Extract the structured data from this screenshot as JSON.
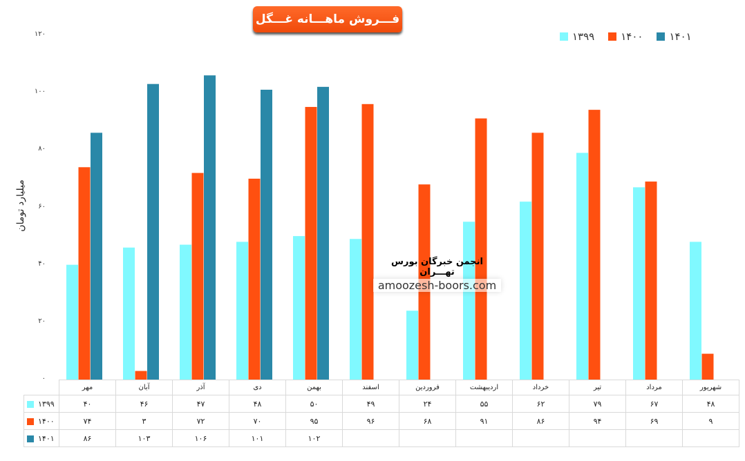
{
  "chart_data": {
    "type": "bar",
    "title": "فـــروش ماهـــانه غـــگل",
    "ylabel": "میلیارد تومان",
    "ylim": [
      0,
      120
    ],
    "yticks": [
      0,
      20,
      40,
      60,
      80,
      100,
      120
    ],
    "ytick_labels": [
      "۰",
      "۲۰",
      "۴۰",
      "۶۰",
      "۸۰",
      "۱۰۰",
      "۱۲۰"
    ],
    "legend_position": "top-right",
    "categories": [
      "مهر",
      "آبان",
      "آذر",
      "دی",
      "بهمن",
      "اسفند",
      "فروردین",
      "اردیبهشت",
      "خرداد",
      "تیر",
      "مرداد",
      "شهریور"
    ],
    "series": [
      {
        "name": "۱۳۹۹",
        "color": "#80f9ff",
        "values": [
          40,
          46,
          47,
          48,
          50,
          49,
          24,
          55,
          62,
          79,
          67,
          48
        ],
        "labels": [
          "۴۰",
          "۴۶",
          "۴۷",
          "۴۸",
          "۵۰",
          "۴۹",
          "۲۴",
          "۵۵",
          "۶۲",
          "۷۹",
          "۶۷",
          "۴۸"
        ]
      },
      {
        "name": "۱۴۰۰",
        "color": "#ff5010",
        "values": [
          74,
          3,
          72,
          70,
          95,
          96,
          68,
          91,
          86,
          94,
          69,
          9
        ],
        "labels": [
          "۷۴",
          "۳",
          "۷۲",
          "۷۰",
          "۹۵",
          "۹۶",
          "۶۸",
          "۹۱",
          "۸۶",
          "۹۴",
          "۶۹",
          "۹"
        ]
      },
      {
        "name": "۱۴۰۱",
        "color": "#2a88a8",
        "values": [
          86,
          103,
          106,
          101,
          102,
          null,
          null,
          null,
          null,
          null,
          null,
          null
        ],
        "labels": [
          "۸۶",
          "۱۰۳",
          "۱۰۶",
          "۱۰۱",
          "۱۰۲",
          "",
          "",
          "",
          "",
          "",
          "",
          ""
        ]
      }
    ],
    "watermark": {
      "line1": "انجمن خبرگان بورس تهـــران",
      "line2": "amoozesh-boors.com"
    }
  }
}
